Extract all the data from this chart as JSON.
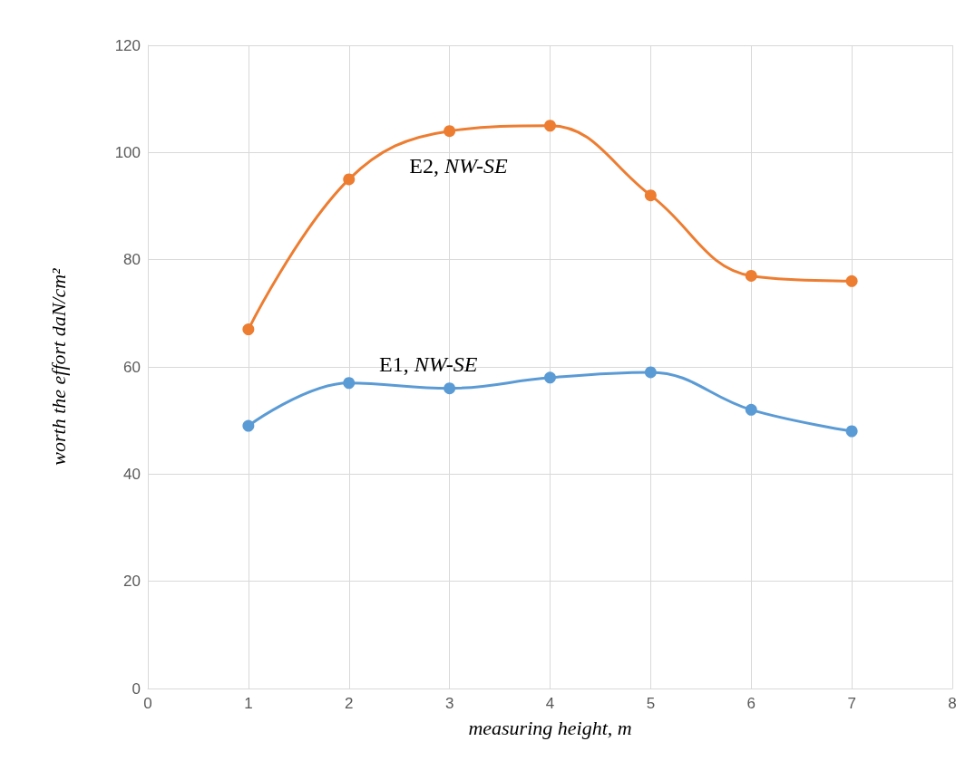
{
  "chart_data": {
    "type": "line",
    "xlabel": "measuring height, m",
    "ylabel": "worth the effort daN/cm²",
    "x": [
      1,
      2,
      3,
      4,
      5,
      6,
      7
    ],
    "series": [
      {
        "name": "E1, NW-SE",
        "color": "#5b9bd5",
        "values": [
          49,
          57,
          56,
          58,
          59,
          52,
          48
        ]
      },
      {
        "name": "E2, NW-SE",
        "color": "#ed7d31",
        "values": [
          67,
          95,
          104,
          105,
          92,
          77,
          76
        ]
      }
    ],
    "xlim": [
      0,
      8
    ],
    "xticks": [
      0,
      1,
      2,
      3,
      4,
      5,
      6,
      7,
      8
    ],
    "ylim": [
      0,
      120
    ],
    "yticks": [
      0,
      20,
      40,
      60,
      80,
      100,
      120
    ],
    "grid": true,
    "marker": "circle",
    "line_style": "solid",
    "legend": false
  }
}
